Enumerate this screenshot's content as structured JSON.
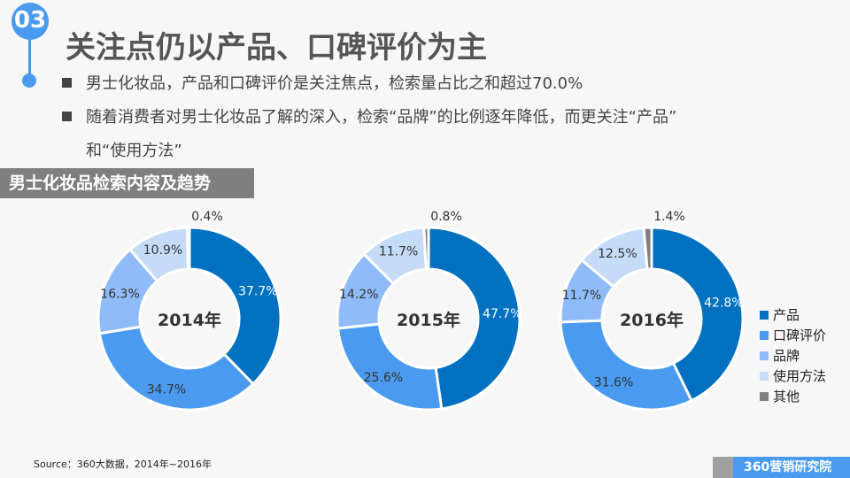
{
  "header": {
    "number": "03",
    "title": "关注点仍以产品、口碑评价为主"
  },
  "bullets": [
    "男士化妆品，产品和口碑评价是关注焦点，检索量占比之和超过70.0%",
    "随着消费者对男士化妆品了解的深入，检索“品牌”的比例逐年降低，而更关注“产品”",
    "和“使用方法”"
  ],
  "section_title": "男士化妆品检索内容及趋势",
  "chart_data": {
    "type": "donut",
    "categories": [
      "产品",
      "口碑评价",
      "品牌",
      "使用方法",
      "其他"
    ],
    "colors": [
      "#0070c0",
      "#4a9bf0",
      "#8fbcf8",
      "#c5dcf8",
      "#808080"
    ],
    "legend_placement": "right",
    "charts": [
      {
        "label": "2014年",
        "values": [
          37.7,
          34.7,
          16.3,
          10.9,
          0.4
        ]
      },
      {
        "label": "2015年",
        "values": [
          47.7,
          25.6,
          14.2,
          11.7,
          0.8
        ]
      },
      {
        "label": "2016年",
        "values": [
          42.8,
          31.6,
          11.7,
          12.5,
          1.4
        ]
      }
    ]
  },
  "source": "Source：360大数据，2014年~2016年",
  "logo": "360营销研究院"
}
